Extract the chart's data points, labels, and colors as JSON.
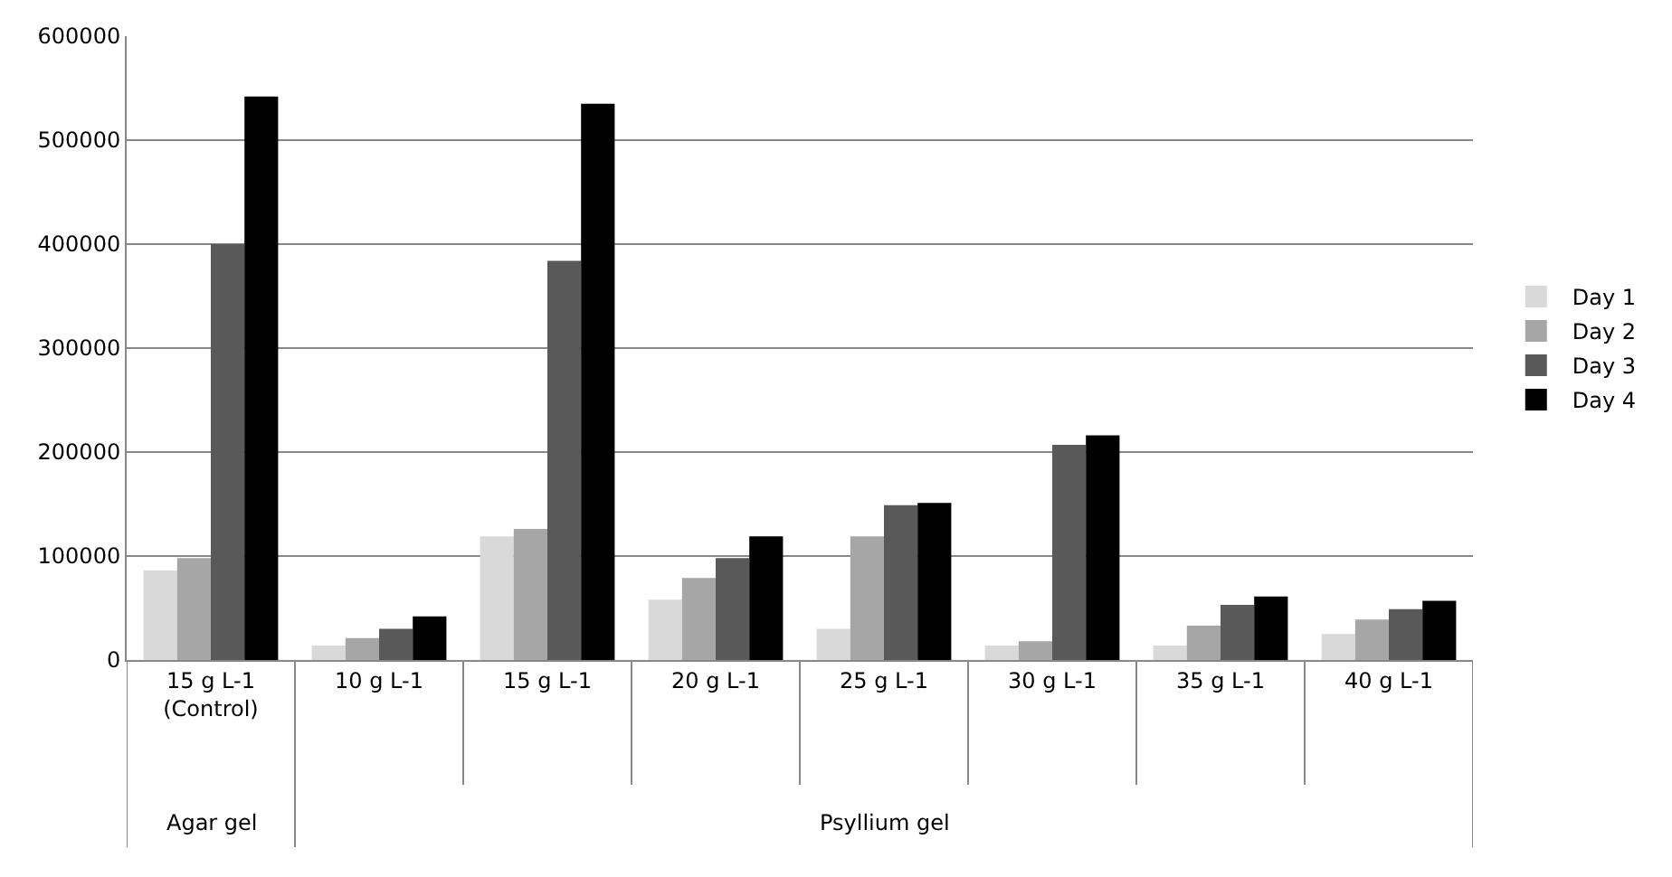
{
  "chart_data": {
    "type": "bar",
    "categories": [
      "15 g L-1\n(Control)",
      "10 g L-1",
      "15 g L-1",
      "20 g L-1",
      "25 g L-1",
      "30 g L-1",
      "35 g L-1",
      "40 g L-1"
    ],
    "series": [
      {
        "name": "Day 1",
        "color": "#d9d9d9",
        "values": [
          86000,
          14000,
          119000,
          58000,
          30000,
          14000,
          14000,
          25000
        ]
      },
      {
        "name": "Day 2",
        "color": "#a6a6a6",
        "values": [
          98000,
          21000,
          126000,
          79000,
          119000,
          18000,
          33000,
          39000
        ]
      },
      {
        "name": "Day 3",
        "color": "#595959",
        "values": [
          400000,
          30000,
          384000,
          98000,
          149000,
          207000,
          53000,
          49000
        ]
      },
      {
        "name": "Day 4",
        "color": "#000000",
        "values": [
          542000,
          42000,
          535000,
          119000,
          151000,
          216000,
          61000,
          57000
        ]
      }
    ],
    "ylim": [
      0,
      600000
    ],
    "yticks": [
      0,
      100000,
      200000,
      300000,
      400000,
      500000,
      600000
    ],
    "grid": "y",
    "legend": "right",
    "annotations": [
      "Agar gel",
      "Psyllium gel"
    ]
  }
}
